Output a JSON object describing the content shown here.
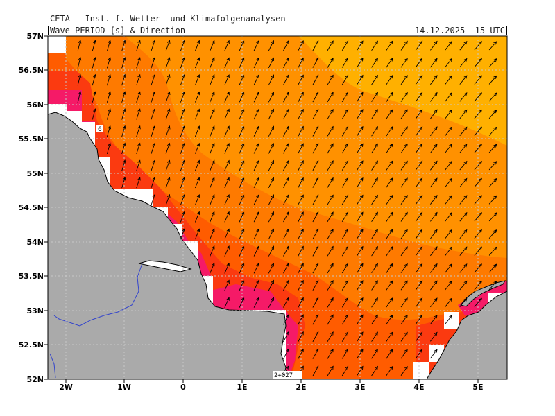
{
  "header": {
    "institution": "CETA — Inst. f. Wetter— und Klimafolgenanalysen —",
    "product": "Wave_PERIOD_[s]_&_Direction",
    "datetime": "14.12.2025  15 UTC"
  },
  "map": {
    "lon_range": [
      -2.3,
      5.5
    ],
    "lat_range": [
      52.0,
      57.0
    ],
    "x_ticks": [
      "2W",
      "1W",
      "0",
      "1E",
      "2E",
      "3E",
      "4E",
      "5E"
    ],
    "y_ticks": [
      "57N",
      "56.5N",
      "56N",
      "55.5N",
      "55N",
      "54.5N",
      "54N",
      "53.5N",
      "53N",
      "52.5N",
      "52N"
    ],
    "contour_labels": [
      {
        "text": "6"
      },
      {
        "text": "2+027"
      }
    ],
    "colors": {
      "period_lt_5": "#f51a67",
      "period_5_6": "#fb3a10",
      "period_6_7": "#ff5c00",
      "period_7_8": "#fe7a00",
      "period_8_9": "#ff9100",
      "period_gt_9": "#ffb000",
      "land": "#aaaaaa",
      "coast_cell": "#ffffff",
      "grid": "#c8c8c8",
      "river": "#3344cc"
    },
    "arrow_direction": "towards NE"
  }
}
